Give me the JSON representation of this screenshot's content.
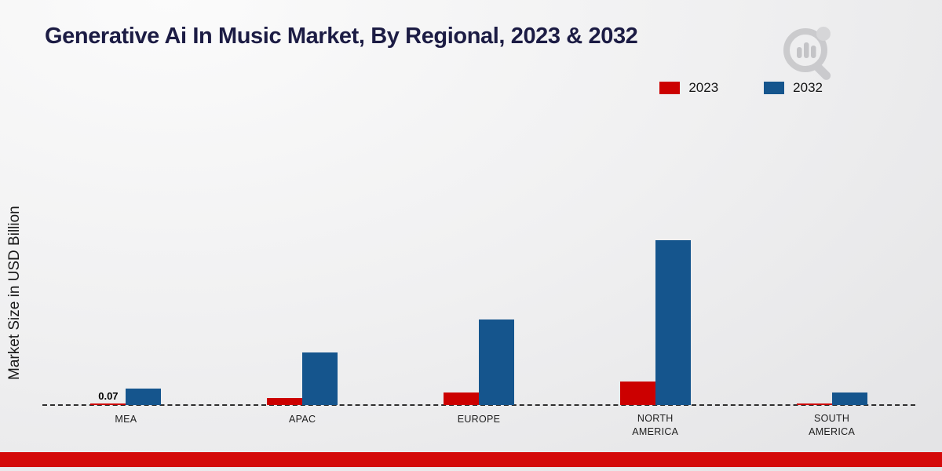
{
  "title": "Generative Ai In Music Market, By Regional, 2023 & 2032",
  "ylabel": "Market Size in USD Billion",
  "colors": {
    "series_2023": "#cc0000",
    "series_2032": "#15558d",
    "footer_bar": "#d40a0a",
    "title_text": "#1c1c44"
  },
  "logo": {
    "name": "brand-magnifier-logo"
  },
  "chart_data": {
    "type": "bar",
    "title": "Generative Ai In Music Market, By Regional, 2023 & 2032",
    "xlabel": "",
    "ylabel": "Market Size in USD Billion",
    "categories": [
      "MEA",
      "APAC",
      "EUROPE",
      "NORTH AMERICA",
      "SOUTH AMERICA"
    ],
    "series": [
      {
        "name": "2023",
        "color": "#cc0000",
        "values": [
          0.07,
          0.25,
          0.45,
          0.85,
          0.05
        ]
      },
      {
        "name": "2032",
        "color": "#15558d",
        "values": [
          0.6,
          1.9,
          3.1,
          6.0,
          0.45
        ]
      }
    ],
    "annotations": [
      {
        "category": "MEA",
        "series": "2023",
        "text": "0.07"
      }
    ],
    "ylim": [
      0,
      6.5
    ],
    "grid": false,
    "legend_position": "top-right",
    "baseline_style": "dashed"
  }
}
